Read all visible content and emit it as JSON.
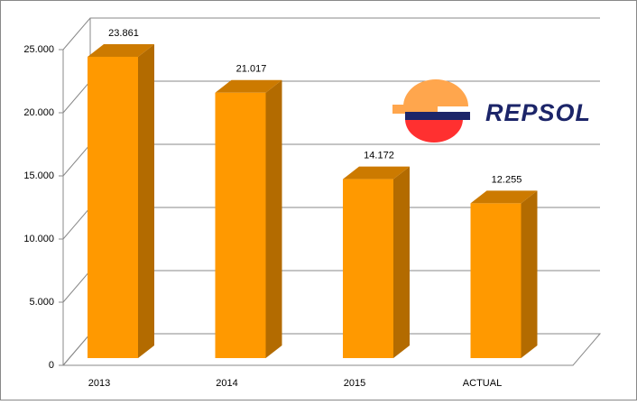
{
  "chart_data": {
    "type": "bar3d",
    "logo_text": "REPSOL",
    "categories": [
      "2013",
      "2014",
      "2015",
      "ACTUAL"
    ],
    "values": [
      23861,
      21017,
      14172,
      12255
    ],
    "value_labels": [
      "23.861",
      "21.017",
      "14.172",
      "12.255"
    ],
    "colors": {
      "front": "#ff9900",
      "side": "#b36b00",
      "top": "#cc7a00"
    },
    "ylim": [
      0,
      25000
    ],
    "yticks": [
      {
        "value": 0,
        "label": "0"
      },
      {
        "value": 5000,
        "label": "5.000"
      },
      {
        "value": 10000,
        "label": "10.000"
      },
      {
        "value": 15000,
        "label": "15.000"
      },
      {
        "value": 20000,
        "label": "20.000"
      },
      {
        "value": 25000,
        "label": "25.000"
      }
    ],
    "grid": true
  }
}
